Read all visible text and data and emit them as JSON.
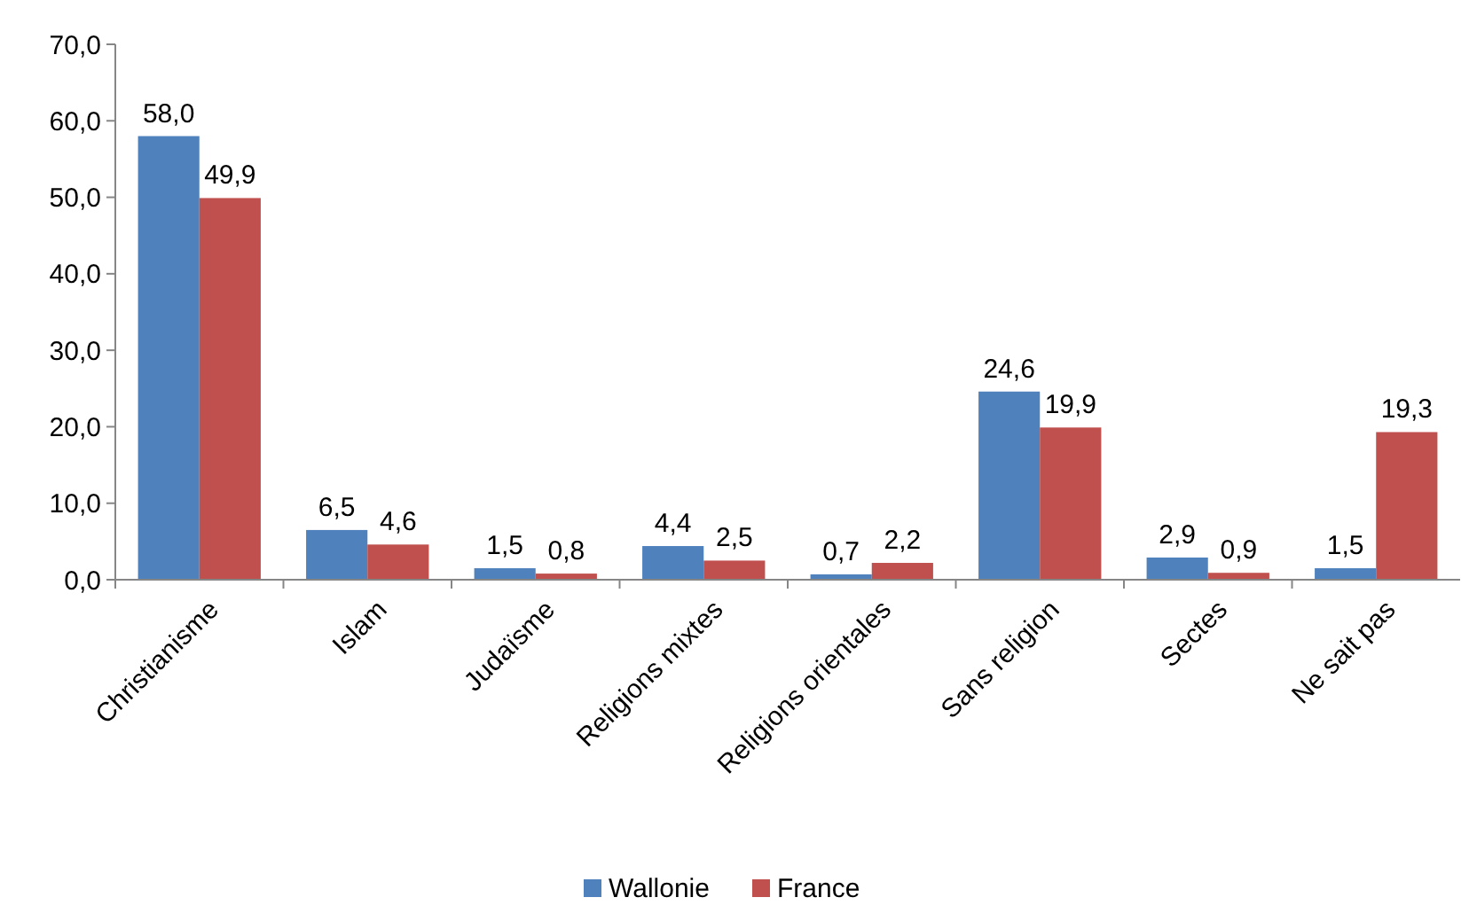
{
  "chart_data": {
    "type": "bar",
    "categories": [
      "Christianisme",
      "Islam",
      "Judaïsme",
      "Religions mixtes",
      "Religions orientales",
      "Sans religion",
      "Sectes",
      "Ne sait pas"
    ],
    "series": [
      {
        "name": "Wallonie",
        "color": "#4f81bd",
        "values": [
          58.0,
          6.5,
          1.5,
          4.4,
          0.7,
          24.6,
          2.9,
          1.5
        ],
        "value_labels": [
          "58,0",
          "6,5",
          "1,5",
          "4,4",
          "0,7",
          "24,6",
          "2,9",
          "1,5"
        ]
      },
      {
        "name": "France",
        "color": "#c0504d",
        "values": [
          49.9,
          4.6,
          0.8,
          2.5,
          2.2,
          19.9,
          0.9,
          19.3
        ],
        "value_labels": [
          "49,9",
          "4,6",
          "0,8",
          "2,5",
          "2,2",
          "19,9",
          "0,9",
          "19,3"
        ]
      }
    ],
    "ylim": [
      0,
      70
    ],
    "yticks": [
      {
        "value": 0,
        "label": "0,0"
      },
      {
        "value": 10,
        "label": "10,0"
      },
      {
        "value": 20,
        "label": "20,0"
      },
      {
        "value": 30,
        "label": "30,0"
      },
      {
        "value": 40,
        "label": "40,0"
      },
      {
        "value": 50,
        "label": "50,0"
      },
      {
        "value": 60,
        "label": "60,0"
      },
      {
        "value": 70,
        "label": "70,0"
      }
    ],
    "grid": false,
    "legend": "bottom"
  }
}
